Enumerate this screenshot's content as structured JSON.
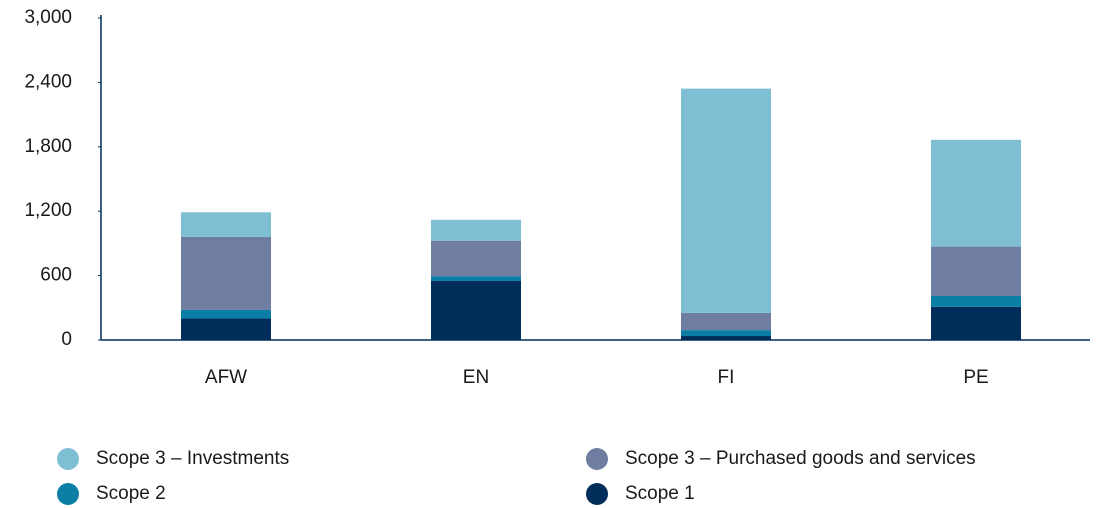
{
  "chart_data": {
    "type": "stacked_bar",
    "categories": [
      "AFW",
      "EN",
      "FI",
      "PE"
    ],
    "series": [
      {
        "name": "Scope 3 – Investments",
        "color": "#7fbfd3",
        "values": [
          230,
          195,
          2090,
          995
        ]
      },
      {
        "name": "Scope 3 – Purchased goods and services",
        "color": "#6f7da1",
        "values": [
          680,
          330,
          160,
          460
        ]
      },
      {
        "name": "Scope 2",
        "color": "#0a7ea4",
        "values": [
          80,
          45,
          55,
          100
        ]
      },
      {
        "name": "Scope 1",
        "color": "#002d5a",
        "values": [
          200,
          550,
          37,
          310
        ]
      }
    ],
    "ylim": [
      0,
      3000
    ],
    "yticks": [
      0,
      600,
      {
        "value": 1200,
        "label": "1,200"
      },
      {
        "value": 1800,
        "label": "1,800"
      },
      {
        "value": 2400,
        "label": "2,400"
      },
      {
        "value": 3000,
        "label": "3,000"
      }
    ],
    "grid": false
  }
}
